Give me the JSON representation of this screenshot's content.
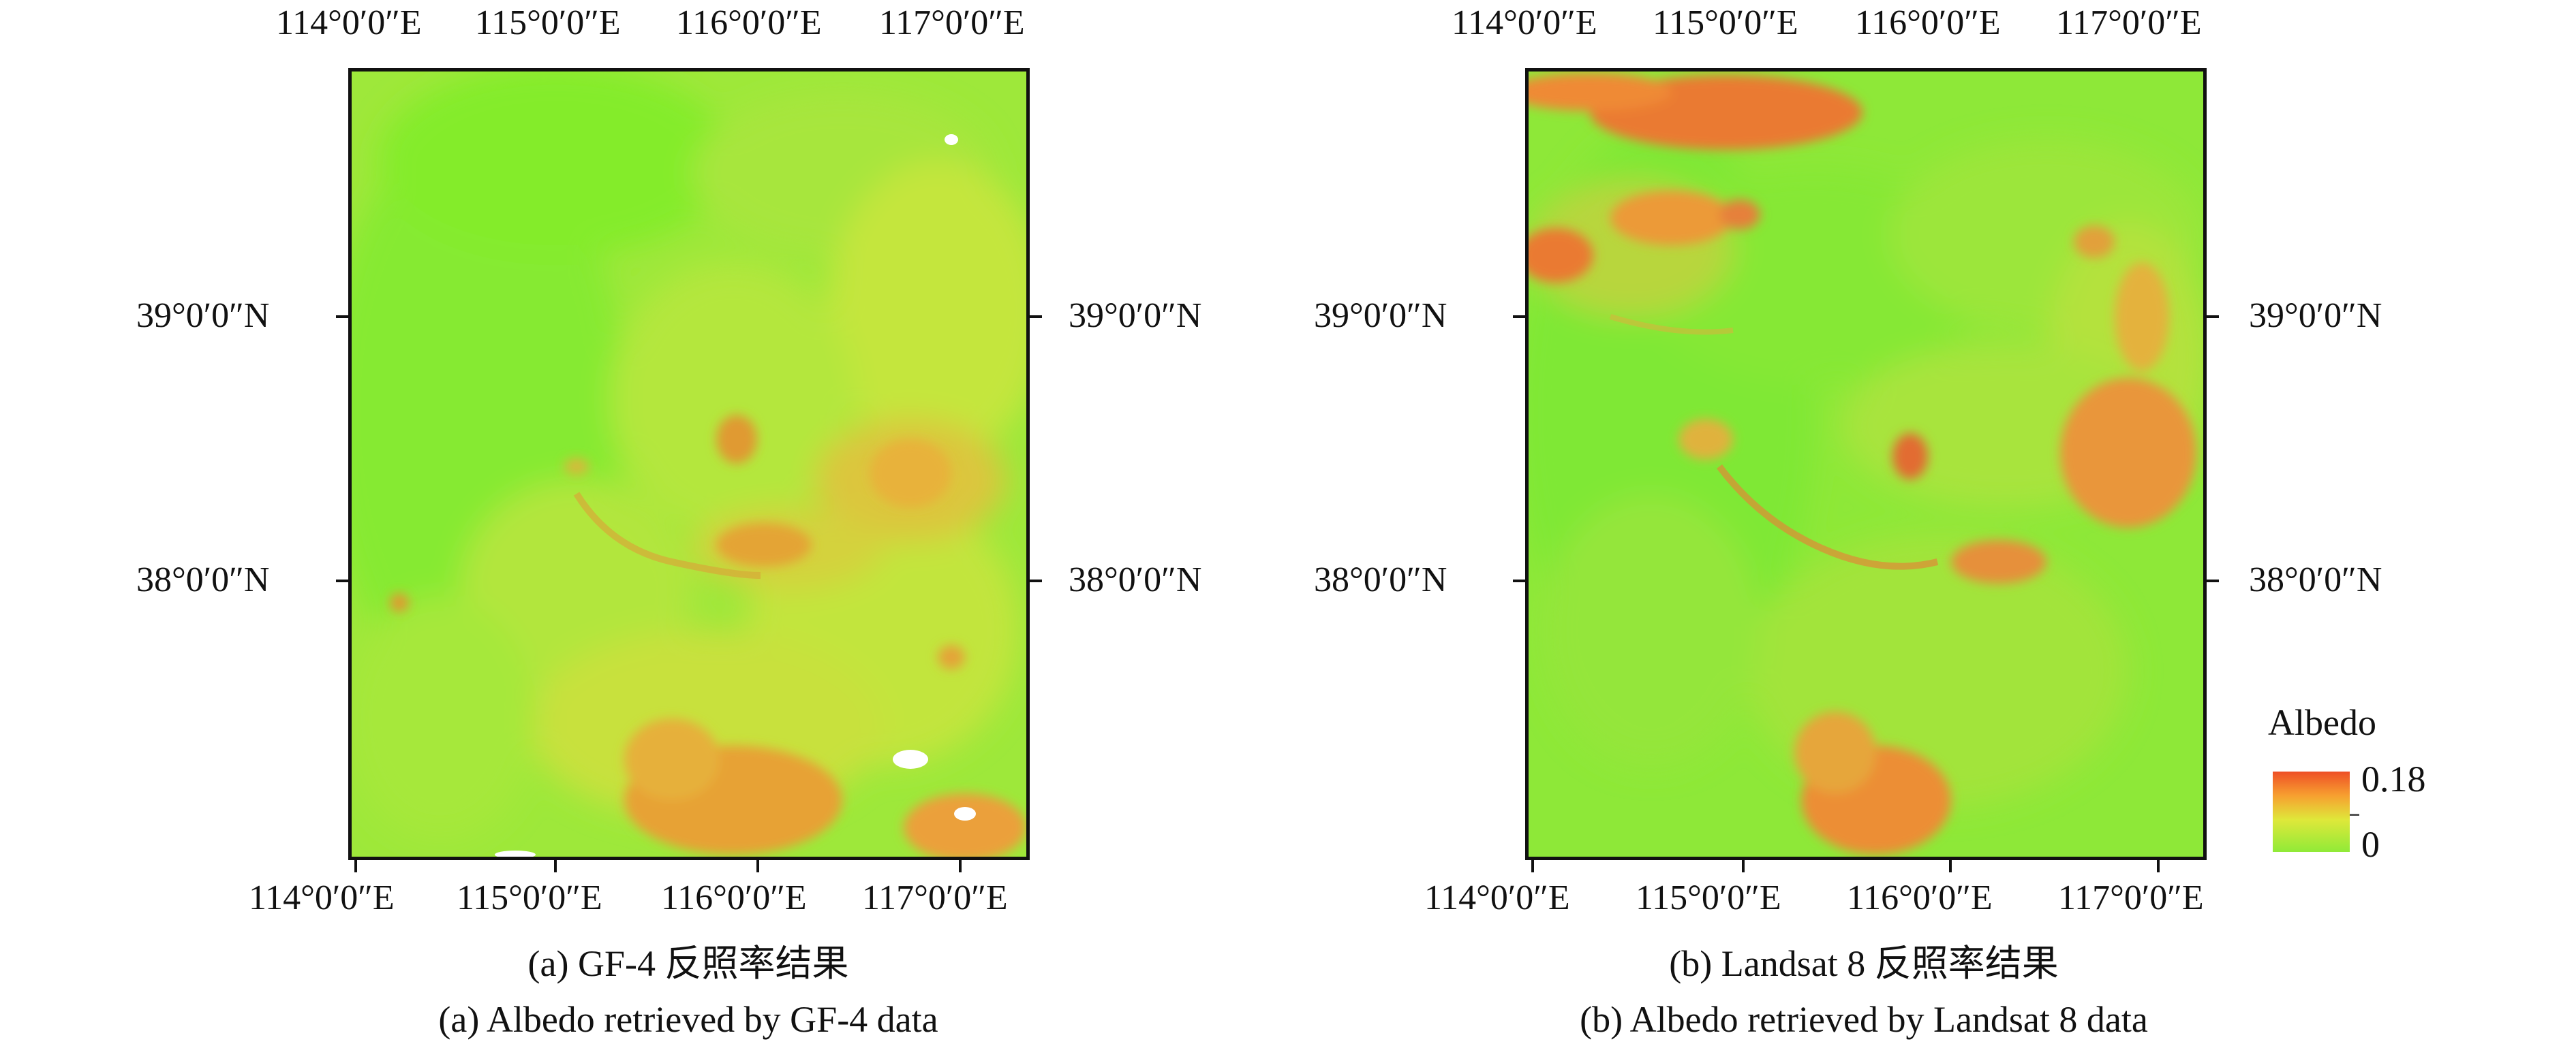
{
  "panel_a": {
    "top_labels": [
      "114°0′0″E",
      "115°0′0″E",
      "116°0′0″E",
      "117°0′0″E"
    ],
    "bottom_labels": [
      "114°0′0″E",
      "115°0′0″E",
      "116°0′0″E",
      "117°0′0″E"
    ],
    "lat_labels": [
      "39°0′0″N",
      "38°0′0″N"
    ],
    "caption_cn": "(a) GF-4 反照率结果",
    "caption_en": "(a) Albedo retrieved by GF-4 data"
  },
  "panel_b": {
    "top_labels": [
      "114°0′0″E",
      "115°0′0″E",
      "116°0′0″E",
      "117°0′0″E"
    ],
    "bottom_labels": [
      "114°0′0″E",
      "115°0′0″E",
      "116°0′0″E",
      "117°0′0″E"
    ],
    "lat_labels": [
      "39°0′0″N",
      "38°0′0″N"
    ],
    "caption_cn": "(b) Landsat 8 反照率结果",
    "caption_en": "(b) Albedo retrieved by Landsat 8 data"
  },
  "legend": {
    "title": "Albedo",
    "max": "0.18",
    "min": "0",
    "colors": {
      "high": "#ee4f26",
      "mid": "#f7a030",
      "low": "#90ea38"
    }
  }
}
